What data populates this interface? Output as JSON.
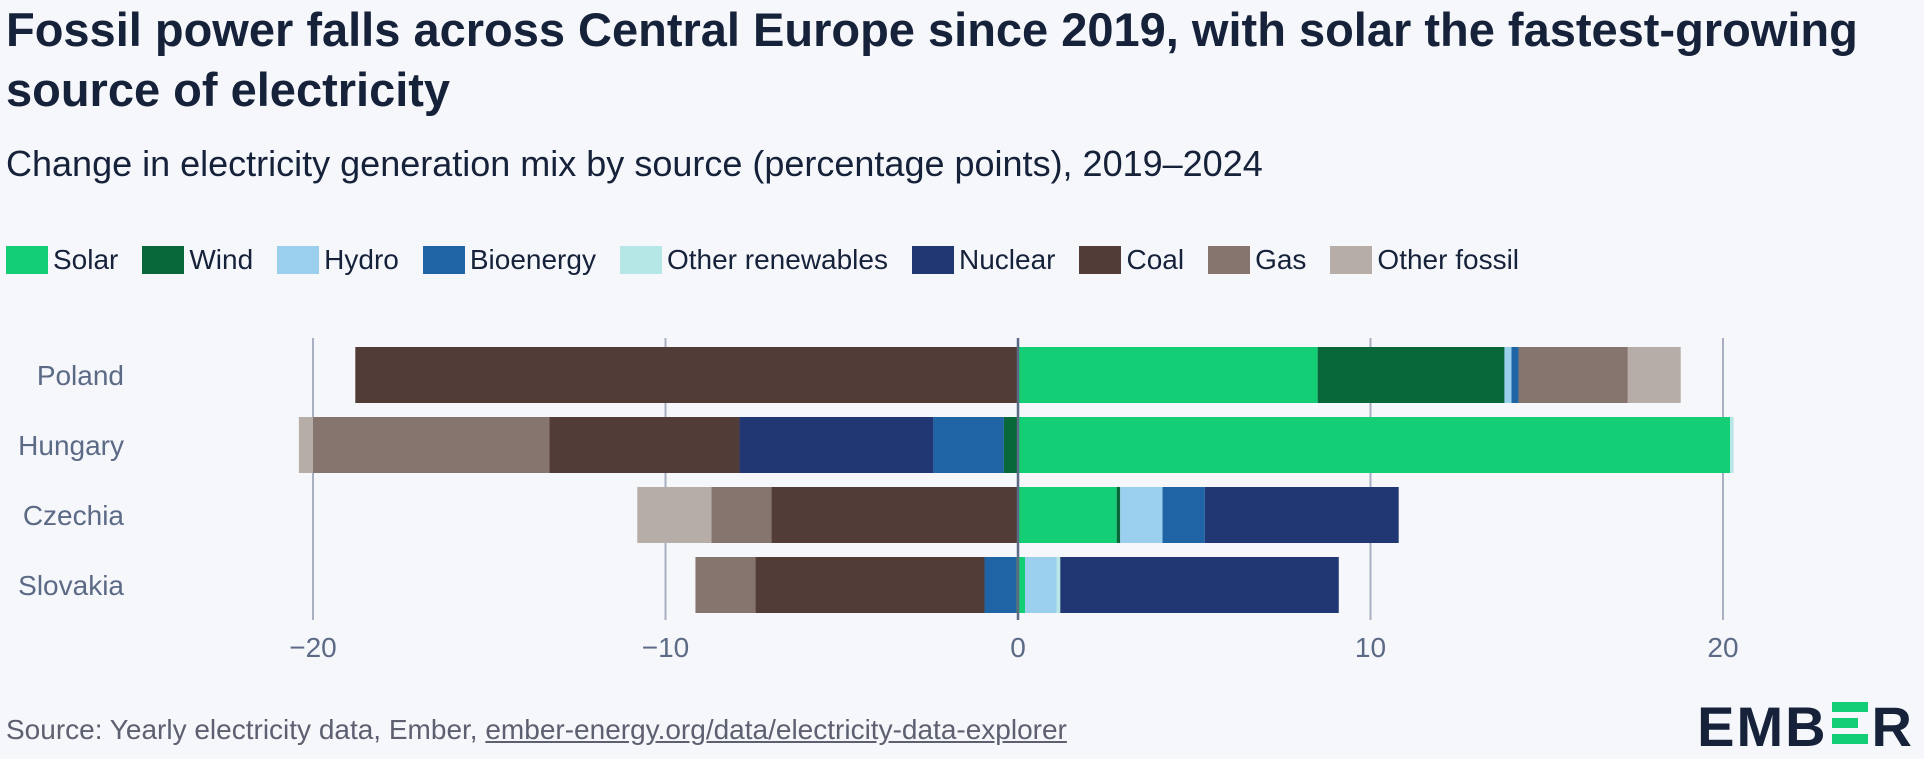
{
  "title": "Fossil power falls across Central Europe since 2019, with solar the fastest-growing source of electricity",
  "subtitle": "Change in electricity generation mix by source (percentage points), 2019–2024",
  "source": {
    "prefix": "Source: Yearly electricity data, Ember, ",
    "link_text": "ember-energy.org/data/electricity-data-explorer"
  },
  "logo": {
    "left": "EMB",
    "right": "R"
  },
  "colors": {
    "Solar": "#13ce74",
    "Wind": "#08683a",
    "Hydro": "#9acfee",
    "Bioenergy": "#1f64a4",
    "Other renewables": "#b5e7e6",
    "Nuclear": "#213774",
    "Coal": "#523c37",
    "Gas": "#86746e",
    "Other fossil": "#b6ada8"
  },
  "chart_data": {
    "type": "bar",
    "orientation": "horizontal",
    "stacked": true,
    "title": "Fossil power falls across Central Europe since 2019, with solar the fastest-growing source of electricity",
    "subtitle": "Change in electricity generation mix by source (percentage points), 2019–2024",
    "xlabel": "",
    "ylabel": "",
    "xlim": [
      -20.5,
      20.5
    ],
    "xticks": [
      -20,
      -10,
      0,
      10,
      20
    ],
    "xtick_labels": [
      "−20",
      "−10",
      "0",
      "10",
      "20"
    ],
    "legend": [
      "Solar",
      "Wind",
      "Hydro",
      "Bioenergy",
      "Other renewables",
      "Nuclear",
      "Coal",
      "Gas",
      "Other fossil"
    ],
    "legend_position": "top",
    "categories": [
      "Poland",
      "Hungary",
      "Czechia",
      "Slovakia"
    ],
    "series": [
      {
        "name": "Solar",
        "values": [
          8.5,
          20.2,
          2.8,
          0.2
        ]
      },
      {
        "name": "Wind",
        "values": [
          5.3,
          -0.4,
          0.1,
          -0.05
        ]
      },
      {
        "name": "Hydro",
        "values": [
          0.2,
          0.0,
          1.2,
          0.9
        ]
      },
      {
        "name": "Bioenergy",
        "values": [
          0.2,
          -2.0,
          1.2,
          -0.9
        ]
      },
      {
        "name": "Other renewables",
        "values": [
          0.0,
          0.1,
          0.0,
          0.1
        ]
      },
      {
        "name": "Nuclear",
        "values": [
          0.0,
          -5.5,
          5.5,
          7.9
        ]
      },
      {
        "name": "Coal",
        "values": [
          -18.8,
          -5.4,
          -7.0,
          -6.5
        ]
      },
      {
        "name": "Gas",
        "values": [
          3.1,
          -6.7,
          -1.7,
          -1.7
        ]
      },
      {
        "name": "Other fossil",
        "values": [
          1.5,
          -0.4,
          -2.1,
          0.0
        ]
      }
    ]
  }
}
